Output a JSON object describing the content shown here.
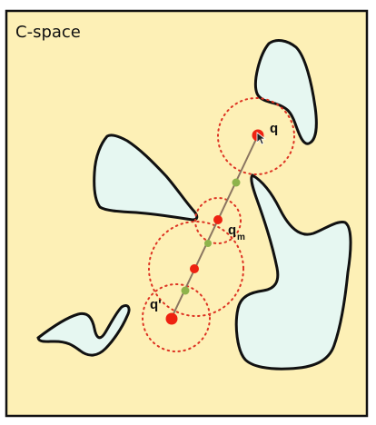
{
  "diagram": {
    "title": "C-space",
    "labels": {
      "q": "q",
      "q_prime": "q'",
      "q_m_base": "q",
      "q_m_sub": "m"
    },
    "colors": {
      "background": "#fdf0b6",
      "frame": "#111111",
      "obstacle_fill": "#e6f7f1",
      "obstacle_stroke": "#111111",
      "red_node": "#ee2211",
      "green_node": "#8eb34b",
      "circle": "#dd3322",
      "path": "#8a7560"
    },
    "icons": [
      "cursor-icon"
    ]
  }
}
